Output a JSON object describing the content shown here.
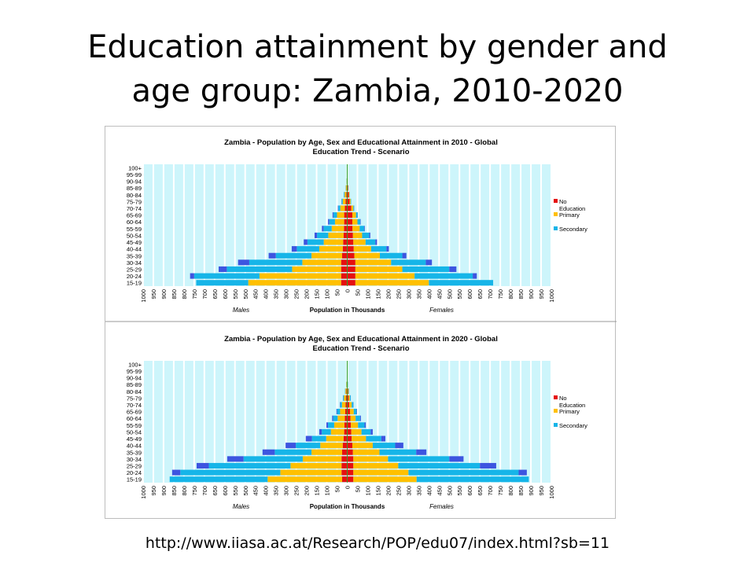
{
  "slide": {
    "title_line1": "Education attainment by gender and",
    "title_line2": "age group: Zambia, 2010-2020",
    "source_url": "http://www.iiasa.ac.at/Research/POP/edu07/index.html?sb=11"
  },
  "colors": {
    "plot_background": "#cdf5fb",
    "grid_lines": "#ffffff",
    "no_education": "#e51010",
    "primary": "#ffc000",
    "secondary": "#16b5e8",
    "tertiary": "#3d55e0",
    "center_line": "#33a02c"
  },
  "chart_data": [
    {
      "type": "bar",
      "subtype": "population-pyramid",
      "title": "Zambia - Population by Age, Sex and Educational Attainment in 2010 - Global Education Trend - Scenario",
      "title_line1": "Zambia - Population by Age, Sex and Educational Attainment in 2010 - Global",
      "title_line2": "Education Trend - Scenario",
      "xlabel": "Population in Thousands",
      "left_label": "Males",
      "right_label": "Females",
      "x_ticks": [
        "1000",
        "950",
        "900",
        "850",
        "800",
        "750",
        "700",
        "650",
        "600",
        "550",
        "500",
        "450",
        "400",
        "350",
        "300",
        "250",
        "200",
        "150",
        "100",
        "50",
        "0",
        "50",
        "100",
        "150",
        "200",
        "250",
        "300",
        "350",
        "400",
        "450",
        "500",
        "550",
        "600",
        "650",
        "700",
        "750",
        "800",
        "850",
        "900",
        "950",
        "1000"
      ],
      "xlim": [
        -1000,
        1000
      ],
      "grid": true,
      "legend_position": "right",
      "legend": [
        "No Education",
        "Primary",
        "Secondary"
      ],
      "categories": [
        "15-19",
        "20-24",
        "25-29",
        "30-34",
        "35-39",
        "40-44",
        "45-49",
        "50-54",
        "55-59",
        "60-64",
        "65-69",
        "70-74",
        "75-79",
        "80-84",
        "85-89",
        "90-94",
        "95-99",
        "100+"
      ],
      "male_no": [
        30,
        30,
        30,
        30,
        25,
        22,
        20,
        18,
        16,
        15,
        15,
        12,
        8,
        5,
        3,
        2,
        1,
        0.5
      ],
      "male_primary": [
        455,
        400,
        240,
        190,
        150,
        115,
        95,
        75,
        60,
        45,
        35,
        22,
        14,
        8,
        4,
        1,
        0.5,
        0
      ],
      "male_secondary": [
        255,
        320,
        320,
        260,
        175,
        110,
        80,
        55,
        40,
        28,
        18,
        10,
        5,
        3,
        1,
        0.5,
        0,
        0
      ],
      "male_tertiary": [
        0,
        20,
        40,
        55,
        35,
        25,
        18,
        12,
        8,
        6,
        4,
        2,
        1,
        0.5,
        0,
        0,
        0,
        0
      ],
      "female_no": [
        40,
        40,
        40,
        40,
        35,
        32,
        30,
        28,
        26,
        25,
        25,
        20,
        12,
        8,
        4,
        2,
        1,
        0.5
      ],
      "female_primary": [
        360,
        290,
        230,
        175,
        125,
        85,
        60,
        45,
        35,
        25,
        18,
        10,
        5,
        3,
        1,
        0.5,
        0,
        0
      ],
      "female_secondary": [
        315,
        285,
        230,
        170,
        110,
        75,
        48,
        35,
        22,
        14,
        8,
        4,
        2,
        1,
        0.5,
        0,
        0,
        0
      ],
      "female_tertiary": [
        0,
        20,
        35,
        30,
        20,
        12,
        8,
        5,
        3,
        2,
        1,
        0.5,
        0,
        0,
        0,
        0,
        0,
        0
      ]
    },
    {
      "type": "bar",
      "subtype": "population-pyramid",
      "title": "Zambia - Population by Age, Sex and Educational Attainment in 2020 - Global Education Trend - Scenario",
      "title_line1": "Zambia - Population by Age, Sex and Educational Attainment in 2020 - Global",
      "title_line2": "Education Trend - Scenario",
      "xlabel": "Population in Thousands",
      "left_label": "Males",
      "right_label": "Females",
      "x_ticks": [
        "1000",
        "950",
        "900",
        "850",
        "800",
        "750",
        "700",
        "650",
        "600",
        "550",
        "500",
        "450",
        "400",
        "350",
        "300",
        "250",
        "200",
        "150",
        "100",
        "50",
        "0",
        "50",
        "100",
        "150",
        "200",
        "250",
        "300",
        "350",
        "400",
        "450",
        "500",
        "550",
        "600",
        "650",
        "700",
        "750",
        "800",
        "850",
        "900",
        "950",
        "1000"
      ],
      "xlim": [
        -1000,
        1000
      ],
      "grid": true,
      "legend_position": "right",
      "legend": [
        "No Education",
        "Primary",
        "Secondary"
      ],
      "categories": [
        "15-19",
        "20-24",
        "25-29",
        "30-34",
        "35-39",
        "40-44",
        "45-49",
        "50-54",
        "55-59",
        "60-64",
        "65-69",
        "70-74",
        "75-79",
        "80-84",
        "85-89",
        "90-94",
        "95-99",
        "100+"
      ],
      "male_no": [
        25,
        28,
        28,
        28,
        25,
        22,
        18,
        15,
        14,
        12,
        10,
        8,
        6,
        4,
        2,
        1,
        0.5,
        0
      ],
      "male_primary": [
        365,
        300,
        250,
        190,
        150,
        110,
        85,
        65,
        50,
        35,
        25,
        18,
        10,
        5,
        2,
        1,
        0,
        0
      ],
      "male_secondary": [
        480,
        490,
        400,
        290,
        180,
        120,
        70,
        45,
        30,
        22,
        15,
        8,
        4,
        2,
        1,
        0,
        0,
        0
      ],
      "male_tertiary": [
        0,
        40,
        60,
        80,
        60,
        50,
        30,
        12,
        8,
        5,
        3,
        2,
        1,
        0,
        0,
        0,
        0,
        0
      ],
      "female_no": [
        30,
        30,
        30,
        30,
        28,
        25,
        22,
        20,
        18,
        16,
        14,
        10,
        7,
        4,
        2,
        1,
        0.5,
        0
      ],
      "female_primary": [
        310,
        270,
        220,
        170,
        130,
        100,
        70,
        50,
        35,
        25,
        18,
        12,
        6,
        3,
        1,
        0.5,
        0,
        0
      ],
      "female_secondary": [
        550,
        540,
        400,
        300,
        180,
        110,
        75,
        45,
        32,
        22,
        14,
        8,
        4,
        2,
        1,
        0,
        0,
        0
      ],
      "female_tertiary": [
        0,
        40,
        80,
        70,
        50,
        40,
        20,
        10,
        6,
        4,
        2,
        1,
        0.5,
        0,
        0,
        0,
        0,
        0
      ]
    }
  ]
}
